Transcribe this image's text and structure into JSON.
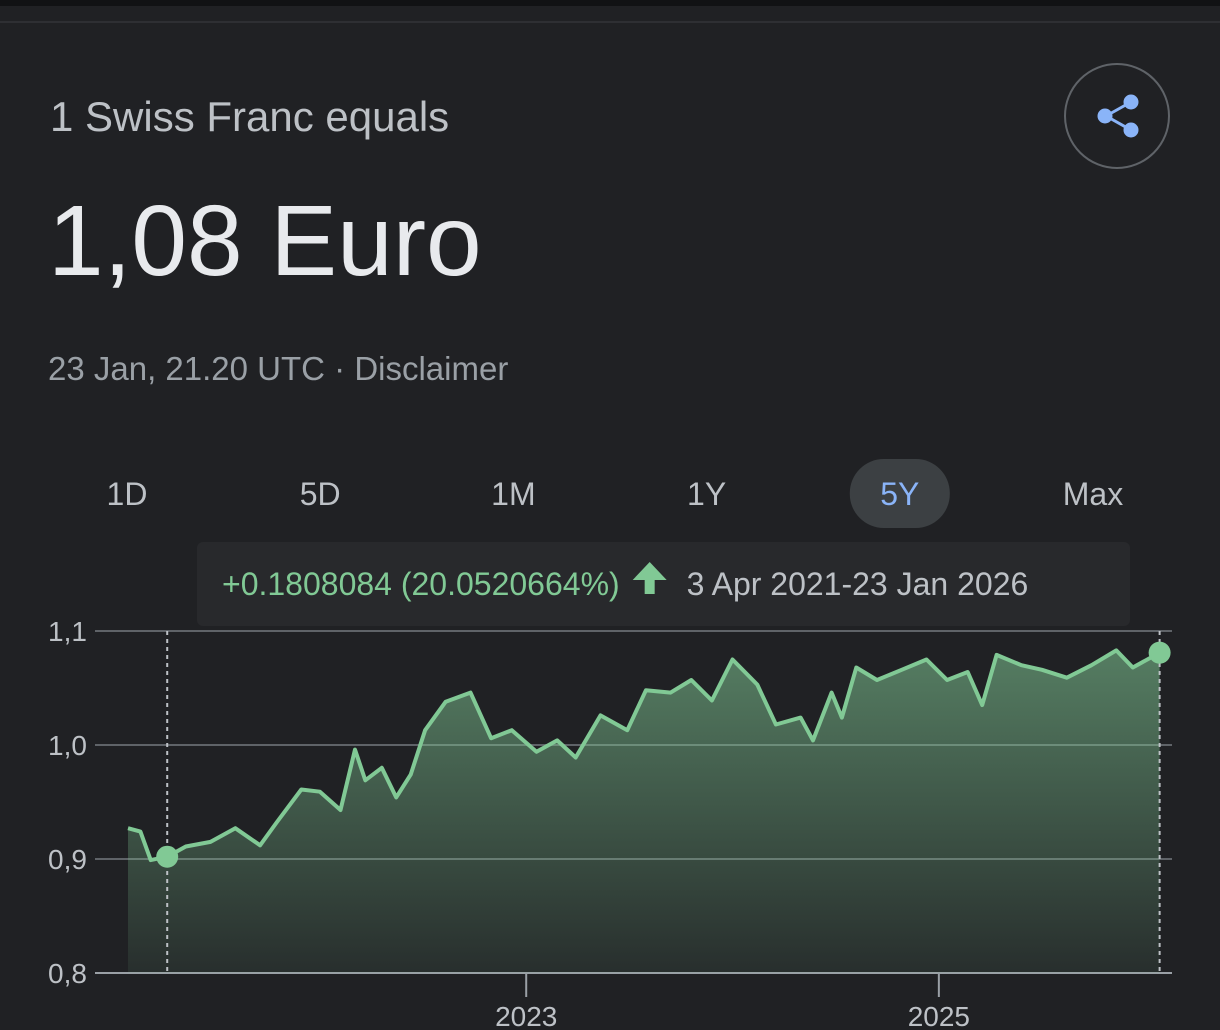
{
  "header": {
    "subtitle": "1 Swiss Franc equals",
    "rate": "1,08 Euro",
    "timestamp": "23 Jan, 21.20 UTC · Disclaimer"
  },
  "tabs": [
    "1D",
    "5D",
    "1M",
    "1Y",
    "5Y",
    "Max"
  ],
  "selected_tab": 4,
  "chart_data": {
    "type": "line",
    "change": "+0.1808084 (20.0520664%)",
    "period": "3 Apr 2021-23 Jan 2026",
    "x": [
      2021.07,
      2021.13,
      2021.18,
      2021.26,
      2021.35,
      2021.47,
      2021.59,
      2021.71,
      2021.79,
      2021.91,
      2022.0,
      2022.1,
      2022.17,
      2022.22,
      2022.3,
      2022.37,
      2022.44,
      2022.51,
      2022.61,
      2022.73,
      2022.83,
      2022.93,
      2023.05,
      2023.15,
      2023.24,
      2023.36,
      2023.49,
      2023.58,
      2023.7,
      2023.8,
      2023.9,
      2024.0,
      2024.12,
      2024.21,
      2024.33,
      2024.39,
      2024.48,
      2024.53,
      2024.6,
      2024.7,
      2024.82,
      2024.94,
      2025.04,
      2025.14,
      2025.21,
      2025.28,
      2025.4,
      2025.5,
      2025.62,
      2025.74,
      2025.86,
      2025.94,
      2026.07
    ],
    "values": [
      0.927,
      0.924,
      0.899,
      0.902,
      0.911,
      0.915,
      0.927,
      0.912,
      0.932,
      0.961,
      0.959,
      0.943,
      0.996,
      0.969,
      0.98,
      0.954,
      0.974,
      1.013,
      1.038,
      1.046,
      1.006,
      1.013,
      0.994,
      1.004,
      0.989,
      1.026,
      1.013,
      1.048,
      1.046,
      1.057,
      1.039,
      1.075,
      1.053,
      1.018,
      1.024,
      1.004,
      1.046,
      1.024,
      1.068,
      1.057,
      1.066,
      1.075,
      1.057,
      1.064,
      1.035,
      1.079,
      1.07,
      1.066,
      1.059,
      1.07,
      1.083,
      1.068,
      1.081
    ],
    "color": "#81c995",
    "selection_x": [
      2021.26,
      2026.07
    ],
    "xlim": [
      2020.91,
      2026.13
    ],
    "xticks": [
      2023,
      2025
    ],
    "ylim": [
      0.8,
      1.1
    ],
    "yticks": [
      {
        "value": 0.8,
        "label": "0,8"
      },
      {
        "value": 0.9,
        "label": "0,9"
      },
      {
        "value": 1.0,
        "label": "1,0"
      },
      {
        "value": 1.1,
        "label": "1,1"
      }
    ],
    "grid": true
  }
}
